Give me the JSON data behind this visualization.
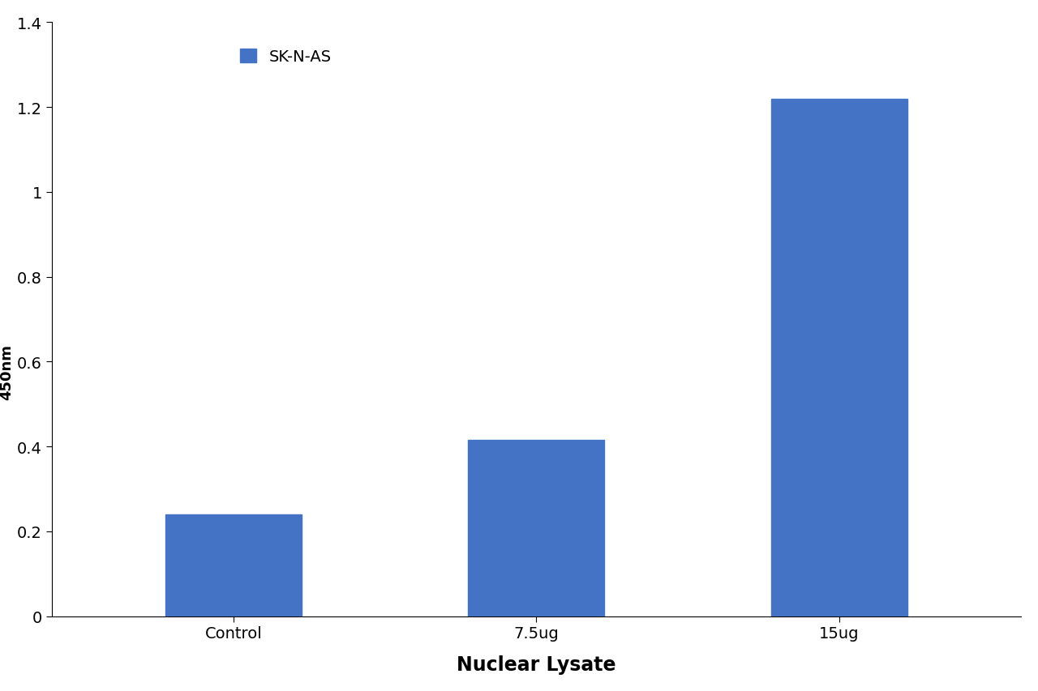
{
  "categories": [
    "Control",
    "7.5ug",
    "15ug"
  ],
  "values": [
    0.24,
    0.415,
    1.22
  ],
  "bar_color": "#4472C4",
  "bar_width": 0.45,
  "xlabel": "Nuclear Lysate",
  "ylim": [
    0,
    1.4
  ],
  "yticks": [
    0,
    0.2,
    0.4,
    0.6,
    0.8,
    1.0,
    1.2,
    1.4
  ],
  "legend_label": "SK-N-AS",
  "legend_color": "#4472C4",
  "background_color": "#ffffff",
  "xlabel_fontsize": 17,
  "tick_fontsize": 14,
  "legend_fontsize": 14
}
